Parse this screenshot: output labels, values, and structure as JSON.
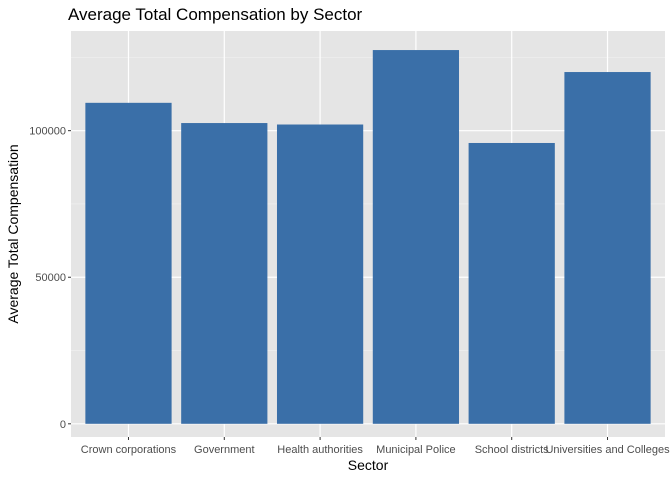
{
  "chart_data": {
    "type": "bar",
    "title": "Average Total Compensation by Sector",
    "xlabel": "Sector",
    "ylabel": "Average Total Compensation",
    "categories": [
      "Crown corporations",
      "Government",
      "Health authorities",
      "Municipal Police",
      "School districts",
      "Universities and Colleges"
    ],
    "values": [
      109500,
      102600,
      102100,
      127500,
      95800,
      120000
    ],
    "yticks": [
      0,
      50000,
      100000
    ],
    "ytick_labels": [
      "0",
      "50000",
      "100000"
    ],
    "ylim": [
      -4500,
      134000
    ],
    "grid": true,
    "legend": "none",
    "colors": {
      "bar": "#3a6fa8",
      "panel_background": "#e5e5e5",
      "grid_major": "#ffffff",
      "grid_minor": "#f2f2f2",
      "tick": "#333333"
    }
  }
}
